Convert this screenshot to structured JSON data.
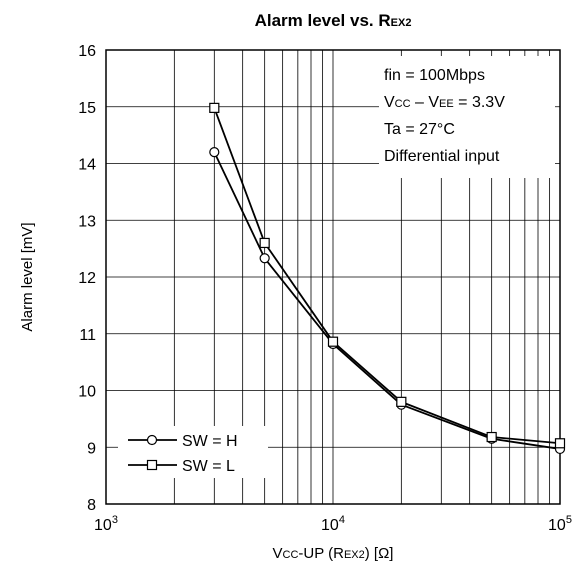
{
  "chart_data": {
    "type": "line",
    "title_main": "Alarm level vs. R",
    "title_sub": "EX2",
    "ylabel": "Alarm level [mV]",
    "xlabel_parts": {
      "v": "V",
      "cc": "CC",
      "mid": "-UP (R",
      "ex": "EX2",
      "end": ") [Ω]"
    },
    "x_scale": "log",
    "xlim": [
      1000,
      100000
    ],
    "ylim": [
      8,
      16
    ],
    "grid": true,
    "x_ticks": [
      {
        "base": "10",
        "exp": "3"
      },
      {
        "base": "10",
        "exp": "4"
      },
      {
        "base": "10",
        "exp": "5"
      }
    ],
    "y_ticks": [
      "8",
      "9",
      "10",
      "11",
      "12",
      "13",
      "14",
      "15",
      "16"
    ],
    "annotation": {
      "line1": "fin = 100Mbps",
      "line2_parts": {
        "v1": "V",
        "s1": "CC",
        "mid": " – V",
        "s2": "EE",
        "end": " = 3.3V"
      },
      "line3": "Ta = 27°C",
      "line4": "Differential input"
    },
    "legend_position": "bottom-left",
    "x": [
      3000,
      5000,
      10000,
      20000,
      50000,
      100000
    ],
    "series": [
      {
        "name": "SW = H",
        "marker": "circle",
        "values": [
          14.2,
          12.33,
          10.82,
          9.75,
          9.15,
          8.97
        ]
      },
      {
        "name": "SW = L",
        "marker": "square",
        "values": [
          14.98,
          12.6,
          10.86,
          9.8,
          9.18,
          9.07
        ]
      }
    ]
  }
}
